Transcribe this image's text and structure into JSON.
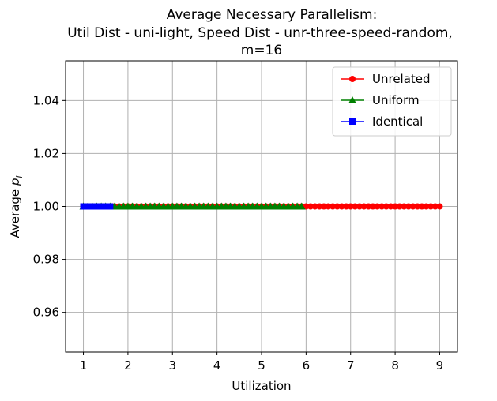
{
  "chart_data": {
    "type": "line",
    "title_lines": [
      "Average Necessary Parallelism:",
      "Util Dist - uni-light, Speed Dist - unr-three-speed-random,",
      "m=16"
    ],
    "xlabel": "Utilization",
    "ylabel_main": "Average ",
    "ylabel_var": "p",
    "ylabel_sub": "i",
    "xlim": [
      0.6,
      9.4
    ],
    "ylim": [
      0.945,
      1.055
    ],
    "xticks": [
      1,
      2,
      3,
      4,
      5,
      6,
      7,
      8,
      9
    ],
    "yticks": [
      0.96,
      0.98,
      1.0,
      1.02,
      1.04
    ],
    "ytick_labels": [
      "0.96",
      "0.98",
      "1.00",
      "1.02",
      "1.04"
    ],
    "grid": true,
    "legend_position": "top-right",
    "series": [
      {
        "name": "Unrelated",
        "color": "#ff0000",
        "marker": "circle",
        "x_start": 1.0,
        "x_end": 9.0,
        "step": 0.1,
        "y": 1.0
      },
      {
        "name": "Uniform",
        "color": "#008000",
        "marker": "triangle",
        "x_start": 1.0,
        "x_end": 5.9,
        "step": 0.1,
        "y": 1.0
      },
      {
        "name": "Identical",
        "color": "#0000ff",
        "marker": "square",
        "x_start": 1.0,
        "x_end": 1.6,
        "step": 0.1,
        "y": 1.0
      }
    ]
  }
}
